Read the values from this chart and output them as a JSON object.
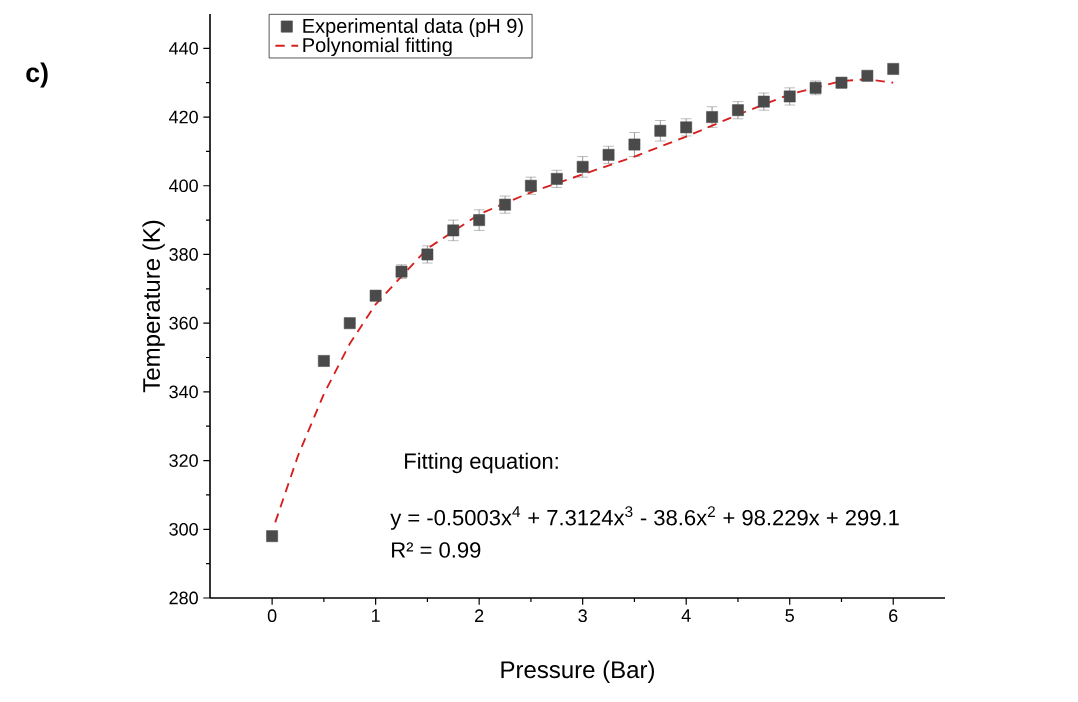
{
  "chart_data": {
    "type": "scatter",
    "xlabel": "Pressure (Bar)",
    "ylabel": "Temperature (K)",
    "xlim": [
      -0.6,
      6.5
    ],
    "ylim": [
      280,
      450
    ],
    "xticks": [
      0,
      1,
      2,
      3,
      4,
      5,
      6
    ],
    "yticks": [
      280,
      300,
      320,
      340,
      360,
      380,
      400,
      420,
      440
    ],
    "legend": "top left",
    "series": [
      {
        "name": "Experimental data (pH 9)",
        "color": "#4a4a4a",
        "marker": "square",
        "x": [
          0,
          0.5,
          0.75,
          1,
          1.25,
          1.5,
          1.75,
          2,
          2.25,
          2.5,
          2.75,
          3,
          3.25,
          3.5,
          3.75,
          4,
          4.25,
          4.5,
          4.75,
          5,
          5.25,
          5.5,
          5.75,
          6
        ],
        "values": [
          298,
          349,
          360,
          368,
          375,
          380,
          387,
          390,
          394.5,
          400,
          402,
          405.5,
          409,
          412,
          416,
          417,
          420,
          422,
          424.5,
          426,
          428.5,
          430,
          432,
          434
        ],
        "errors": [
          null,
          null,
          null,
          1.5,
          2,
          2.5,
          3,
          3,
          2.5,
          2.5,
          2.5,
          3,
          2.5,
          3.5,
          3,
          2.5,
          3,
          2.5,
          2.5,
          2.5,
          2,
          1.5,
          1,
          null
        ]
      },
      {
        "name": "Polynomial fitting",
        "type": "line",
        "color": "#d62020",
        "line_style": "dashed",
        "marker": "none",
        "x": [
          0.03,
          0.25,
          0.5,
          0.75,
          1,
          1.5,
          2,
          2.5,
          3,
          3.5,
          4,
          4.5,
          5,
          5.5,
          5.75,
          6
        ],
        "values": [
          302,
          321.4,
          339.4,
          354,
          365.5,
          381.7,
          391.7,
          398.1,
          403.3,
          408.5,
          414.3,
          420.7,
          426.6,
          430.5,
          431,
          430
        ]
      }
    ],
    "annotations": [
      "c)",
      "Fitting equation:",
      "y = -0.5003x$^{4}$ + 7.3124x$^{3}$ - 38.6x$^{2}$ + 98.229x + 299.1",
      "R² = 0.99"
    ]
  }
}
